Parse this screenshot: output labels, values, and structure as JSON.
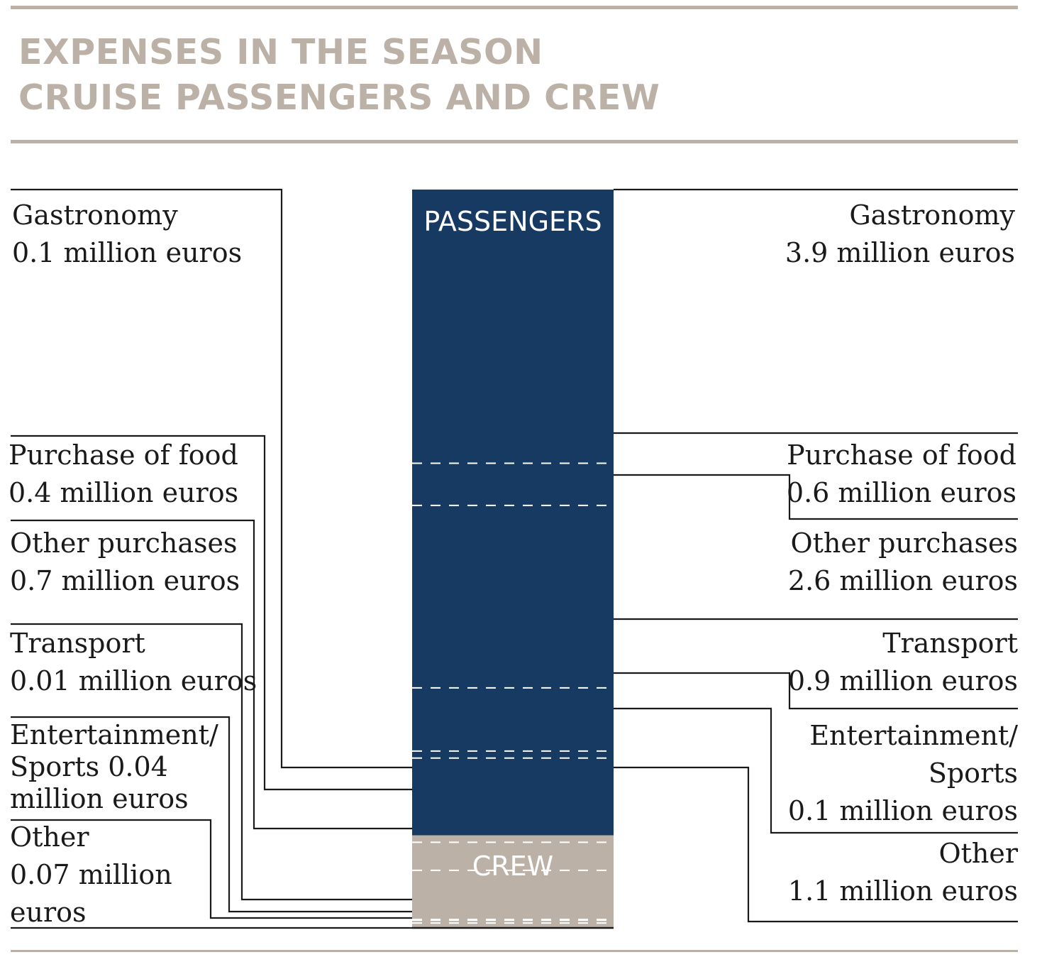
{
  "title": [
    "EXPENSES IN THE SEASON",
    "CRUISE PASSENGERS AND CREW"
  ],
  "colors": {
    "passengers": "#173a63",
    "crew": "#bcb1a6",
    "rule": "#bcb1a6",
    "line": "#1a1a1a"
  },
  "chart_data": {
    "type": "bar",
    "stacked": true,
    "series": [
      {
        "name": "PASSENGERS",
        "categories": [
          {
            "name": "Gastronomy",
            "label": "Gastronomy",
            "value_label": "3.9 million euros",
            "value": 3.9
          },
          {
            "name": "Purchase of food",
            "label": "Purchase of food",
            "value_label": "0.6 million euros",
            "value": 0.6
          },
          {
            "name": "Other purchases",
            "label": "Other purchases",
            "value_label": "2.6 million euros",
            "value": 2.6
          },
          {
            "name": "Transport",
            "label": "Transport",
            "value_label": "0.9 million euros",
            "value": 0.9
          },
          {
            "name": "Entertainment/Sports",
            "lines": [
              "Entertainment/",
              "Sports",
              "0.1 million euros"
            ],
            "value": 0.1
          },
          {
            "name": "Other",
            "label": "Other",
            "value_label": "1.1 million euros",
            "value": 1.1
          }
        ]
      },
      {
        "name": "CREW",
        "categories": [
          {
            "name": "Gastronomy",
            "label": "Gastronomy",
            "value_label": "0.1 million euros",
            "value": 0.1
          },
          {
            "name": "Purchase of food",
            "label": "Purchase of food",
            "value_label": "0.4 million euros",
            "value": 0.4
          },
          {
            "name": "Other purchases",
            "label": "Other purchases",
            "value_label": "0.7 million euros",
            "value": 0.7
          },
          {
            "name": "Transport",
            "label": "Transport",
            "value_label": "0.01 million euros",
            "value": 0.01
          },
          {
            "name": "Entertainment/Sports",
            "lines": [
              "Entertainment/",
              "Sports 0.04",
              "million euros"
            ],
            "value": 0.04
          },
          {
            "name": "Other",
            "lines": [
              "Other",
              "0.07 million",
              "euros"
            ],
            "value": 0.07
          }
        ]
      }
    ]
  }
}
